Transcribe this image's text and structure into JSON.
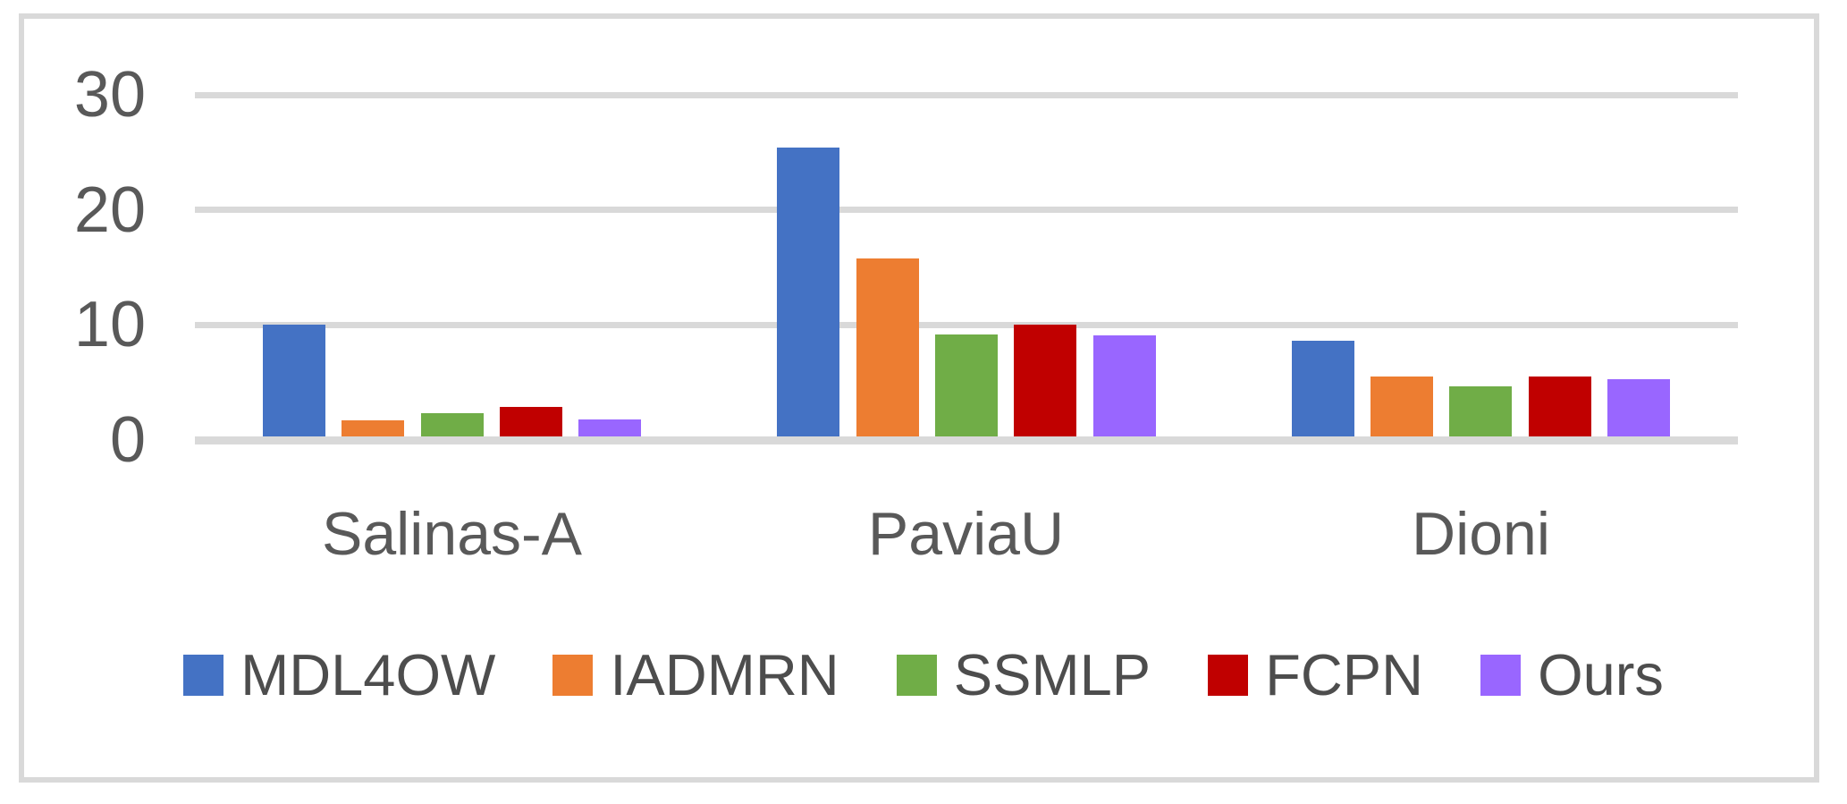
{
  "figure": {
    "frame_border_color": "#D9D9D9",
    "gridline_color": "#D9D9D9",
    "axis_text_color": "#595959",
    "legend_text_color": "#4D4D4D",
    "background_color": "#FFFFFF"
  },
  "chart_data": {
    "type": "bar",
    "title": "",
    "xlabel": "",
    "ylabel": "",
    "categories": [
      "Salinas-A",
      "PaviaU",
      "Dioni"
    ],
    "series": [
      {
        "name": "MDL4OW",
        "color": "#4472C4",
        "values": [
          10.0,
          25.4,
          8.6
        ]
      },
      {
        "name": "IADMRN",
        "color": "#ED7D31",
        "values": [
          1.7,
          15.8,
          5.5
        ]
      },
      {
        "name": "SSMLP",
        "color": "#70AD47",
        "values": [
          2.3,
          9.2,
          4.7
        ]
      },
      {
        "name": "FCPN",
        "color": "#C00000",
        "values": [
          2.9,
          10.0,
          5.5
        ]
      },
      {
        "name": "Ours",
        "color": "#9966FF",
        "values": [
          1.8,
          9.1,
          5.3
        ]
      }
    ],
    "yticks": [
      0,
      10,
      20,
      30
    ],
    "ylim": [
      0,
      30
    ],
    "grid": "horizontal",
    "legend_position": "bottom"
  }
}
